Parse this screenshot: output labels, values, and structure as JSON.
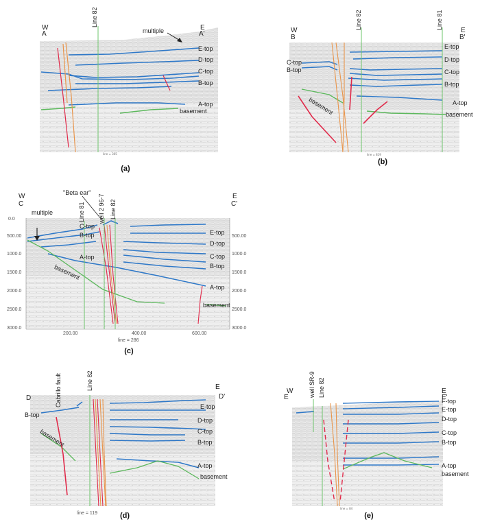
{
  "panels": {
    "a": {
      "caption": "(a)",
      "w_label": "W",
      "a_label": "A",
      "e_label": "E",
      "a2_label": "A'",
      "line82": "Line 82",
      "multiple": "multiple",
      "tops": [
        "E-top",
        "D-top",
        "C-top",
        "B-top",
        "A-top"
      ],
      "basement": "basement"
    },
    "b": {
      "caption": "(b)",
      "w_label": "W",
      "b_label": "B",
      "e_label": "E",
      "b2_label": "B'",
      "line82": "Line 82",
      "line81": "Line 81",
      "left_tops": [
        "C-top",
        "B-top"
      ],
      "tops": [
        "E-top",
        "D-top",
        "C-top",
        "B-top",
        "A-top"
      ],
      "basement_left": "basement",
      "basement_right": "basement"
    },
    "c": {
      "caption": "(c)",
      "w_label": "W",
      "c_label": "C",
      "e_label": "E",
      "c2_label": "C'",
      "beta": "\"Beta ear\"",
      "line81": "Line 81",
      "well": "well 2 96-7",
      "line82": "Line 82",
      "multiple": "multiple",
      "left_tops": [
        "C-top",
        "B-top",
        "A-top"
      ],
      "tops": [
        "E-top",
        "D-top",
        "C-top",
        "B-top",
        "A-top"
      ],
      "basement_left": "basement",
      "basement_right": "basement",
      "left_axis": [
        "0.0",
        "500.00",
        "1000.0",
        "1500.0",
        "2000.0",
        "2500.0",
        "3000.0"
      ],
      "right_axis": [
        "500.00",
        "1000.0",
        "1500.0",
        "2000.0",
        "2500.0",
        "3000.0"
      ],
      "bottom_axis": [
        "200.00",
        "400.00",
        "600.00"
      ],
      "line_no": "line = 286"
    },
    "d": {
      "caption": "(d)",
      "d_label": "D",
      "e_label": "E",
      "d2_label": "D'",
      "cabrillo": "Cabrillo fault",
      "line82": "Line 82",
      "left_top": "B-top",
      "tops": [
        "E-top",
        "D-top",
        "C-top",
        "B-top",
        "A-top"
      ],
      "basement_left": "basement",
      "basement_right": "basement",
      "line_no": "line = 119"
    },
    "e": {
      "caption": "(e)",
      "w_label": "W",
      "e1_label": "E",
      "e_label": "E",
      "e2_label": "E'",
      "well": "well SR-9",
      "line82": "Line 82",
      "tops": [
        "F-top",
        "E-top",
        "D-top",
        "C-top",
        "B-top",
        "A-top"
      ],
      "basement": "basement"
    }
  },
  "colors": {
    "horizon": "#2e78c8",
    "fault_red": "#e02a4a",
    "fault_orange": "#e8944a",
    "line_green": "#6dc46b",
    "basement_green": "#5cb85c",
    "seismic_bg": "#ececec"
  }
}
